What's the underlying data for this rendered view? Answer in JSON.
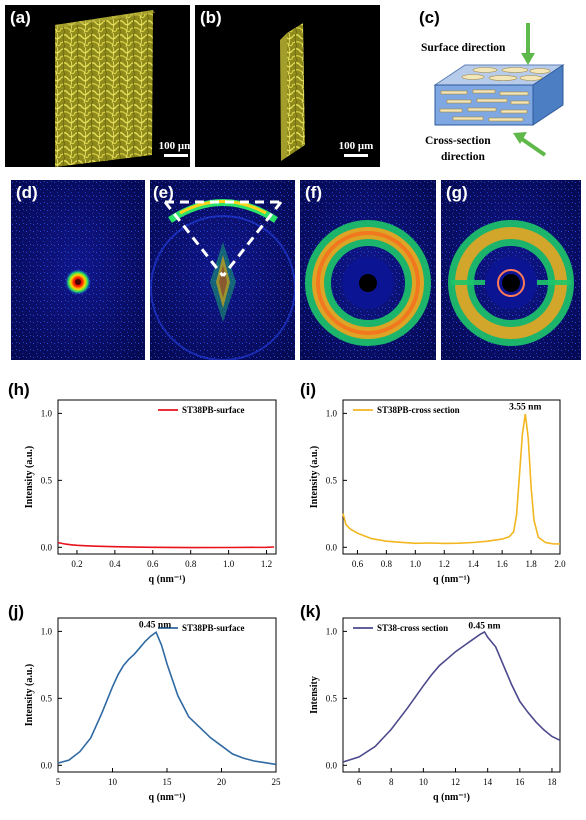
{
  "panels": {
    "a": {
      "label": "(a)",
      "scale": "100 μm"
    },
    "b": {
      "label": "(b)",
      "scale": "100 μm"
    },
    "c": {
      "label": "(c)",
      "surface": "Surface direction",
      "cross1": "Cross-section",
      "cross2": "direction"
    },
    "d": {
      "label": "(d)"
    },
    "e": {
      "label": "(e)"
    },
    "f": {
      "label": "(f)"
    },
    "g": {
      "label": "(g)"
    },
    "h": {
      "label": "(h)"
    },
    "i": {
      "label": "(i)"
    },
    "j": {
      "label": "(j)"
    },
    "k": {
      "label": "(k)"
    }
  },
  "colors": {
    "yellow": "#c9c23a",
    "red": "#e8131b",
    "orange": "#f2b620",
    "blue": "#2f6aa3",
    "purple": "#4c4a8c"
  },
  "chart_data": [
    {
      "id": "h",
      "type": "line",
      "xlabel": "q (nm⁻¹)",
      "ylabel": "Intensity (a.u.)",
      "xlim": [
        0.1,
        1.25
      ],
      "ylim": [
        -0.05,
        1.1
      ],
      "xticks": [
        "0.2",
        "0.4",
        "0.6",
        "0.8",
        "1.0",
        "1.2"
      ],
      "xtick_values": [
        0.2,
        0.4,
        0.6,
        0.8,
        1.0,
        1.2
      ],
      "yticks": [
        "0.0",
        "0.5",
        "1.0"
      ],
      "ytick_values": [
        0.0,
        0.5,
        1.0
      ],
      "series": [
        {
          "name": "ST38PB-surface",
          "color": "#e8131b",
          "x": [
            0.1,
            0.11,
            0.12,
            0.14,
            0.17,
            0.2,
            0.25,
            0.3,
            0.4,
            0.5,
            0.6,
            0.8,
            1.0,
            1.2,
            1.24
          ],
          "y": [
            0.035,
            0.03,
            0.025,
            0.018,
            0.013,
            0.01,
            0.008,
            0.007,
            0.006,
            0.005,
            0.005,
            0.004,
            0.004,
            0.004,
            0.004
          ]
        }
      ]
    },
    {
      "id": "i",
      "type": "line",
      "xlabel": "q (nm⁻¹)",
      "ylabel": "Intensity (a.u.)",
      "xlim": [
        0.5,
        2.0
      ],
      "ylim": [
        -0.05,
        1.1
      ],
      "xticks": [
        "0.6",
        "0.8",
        "1.0",
        "1.2",
        "1.4",
        "1.6",
        "1.8",
        "2.0"
      ],
      "xtick_values": [
        0.6,
        0.8,
        1.0,
        1.2,
        1.4,
        1.6,
        1.8,
        2.0
      ],
      "yticks": [
        "0.0",
        "0.5",
        "1.0"
      ],
      "ytick_values": [
        0.0,
        0.5,
        1.0
      ],
      "annotations": [
        {
          "text": "3.55 nm",
          "x": 1.76,
          "y": 1.0
        }
      ],
      "series": [
        {
          "name": "ST38PB-cross section",
          "color": "#f2b620",
          "x": [
            0.5,
            0.52,
            0.55,
            0.6,
            0.65,
            0.7,
            0.8,
            0.9,
            1.0,
            1.1,
            1.2,
            1.3,
            1.4,
            1.5,
            1.55,
            1.6,
            1.65,
            1.68,
            1.7,
            1.72,
            1.74,
            1.76,
            1.78,
            1.8,
            1.82,
            1.85,
            1.9,
            1.95,
            2.0
          ],
          "y": [
            0.25,
            0.17,
            0.14,
            0.11,
            0.09,
            0.07,
            0.05,
            0.04,
            0.03,
            0.03,
            0.025,
            0.025,
            0.03,
            0.04,
            0.05,
            0.06,
            0.08,
            0.12,
            0.25,
            0.55,
            0.85,
            1.0,
            0.82,
            0.45,
            0.2,
            0.07,
            0.03,
            0.02,
            0.02
          ]
        }
      ]
    },
    {
      "id": "j",
      "type": "line",
      "xlabel": "q (nm⁻¹)",
      "ylabel": "Intensity (a.u.)",
      "xlim": [
        5,
        25
      ],
      "ylim": [
        -0.05,
        1.1
      ],
      "xticks": [
        "5",
        "10",
        "15",
        "20",
        "25"
      ],
      "xtick_values": [
        5,
        10,
        15,
        20,
        25
      ],
      "yticks": [
        "0.0",
        "0.5",
        "1.0"
      ],
      "ytick_values": [
        0.0,
        0.5,
        1.0
      ],
      "annotations": [
        {
          "text": "0.45 nm",
          "x": 13.9,
          "y": 1.0
        }
      ],
      "series": [
        {
          "name": "ST38PB-surface",
          "color": "#2f6aa3",
          "x": [
            5,
            6,
            7,
            8,
            9,
            10,
            10.5,
            11,
            11.5,
            12,
            12.5,
            13,
            13.5,
            14,
            14.5,
            15,
            16,
            17,
            18,
            19,
            20,
            21,
            22,
            23,
            24,
            25
          ],
          "y": [
            0.02,
            0.04,
            0.1,
            0.2,
            0.38,
            0.58,
            0.67,
            0.74,
            0.79,
            0.83,
            0.88,
            0.93,
            0.97,
            1.0,
            0.9,
            0.76,
            0.52,
            0.36,
            0.28,
            0.2,
            0.14,
            0.08,
            0.05,
            0.03,
            0.02,
            0.01
          ]
        }
      ]
    },
    {
      "id": "k",
      "type": "line",
      "xlabel": "q (nm⁻¹)",
      "ylabel": "Intensity",
      "xlim": [
        5,
        18.5
      ],
      "ylim": [
        -0.05,
        1.1
      ],
      "xticks": [
        "6",
        "8",
        "10",
        "12",
        "14",
        "16",
        "18"
      ],
      "xtick_values": [
        6,
        8,
        10,
        12,
        14,
        16,
        18
      ],
      "yticks": [
        "0.0",
        "0.5",
        "1.0"
      ],
      "ytick_values": [
        0.0,
        0.5,
        1.0
      ],
      "annotations": [
        {
          "text": "0.45 nm",
          "x": 13.8,
          "y": 0.99
        }
      ],
      "series": [
        {
          "name": "ST38-cross section",
          "color": "#4c4a8c",
          "x": [
            5,
            6,
            7,
            8,
            9,
            10,
            10.5,
            11,
            11.5,
            12,
            12.5,
            13,
            13.5,
            13.8,
            14,
            14.5,
            15,
            15.5,
            16,
            16.5,
            17,
            17.5,
            18,
            18.5
          ],
          "y": [
            0.02,
            0.06,
            0.14,
            0.27,
            0.43,
            0.6,
            0.68,
            0.75,
            0.8,
            0.85,
            0.89,
            0.93,
            0.97,
            0.99,
            0.95,
            0.88,
            0.74,
            0.6,
            0.48,
            0.4,
            0.33,
            0.27,
            0.22,
            0.19
          ]
        }
      ]
    }
  ]
}
